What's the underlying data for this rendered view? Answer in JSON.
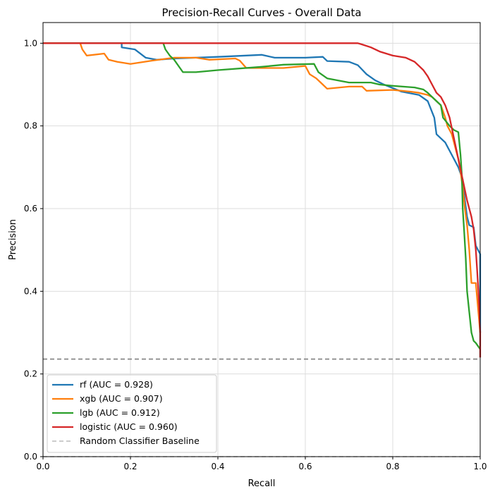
{
  "chart_data": {
    "type": "line",
    "title": "Precision-Recall Curves - Overall Data",
    "xlabel": "Recall",
    "ylabel": "Precision",
    "xlim": [
      0.0,
      1.0
    ],
    "ylim": [
      0.0,
      1.05
    ],
    "xticks": [
      0.0,
      0.2,
      0.4,
      0.6,
      0.8,
      1.0
    ],
    "yticks": [
      0.0,
      0.2,
      0.4,
      0.6,
      0.8,
      1.0
    ],
    "xtick_labels": [
      "0.0",
      "0.2",
      "0.4",
      "0.6",
      "0.8",
      "1.0"
    ],
    "ytick_labels": [
      "0.0",
      "0.2",
      "0.4",
      "0.6",
      "0.8",
      "1.0"
    ],
    "grid": true,
    "legend_position": "lower-left",
    "series": [
      {
        "name": "rf (AUC = 0.928)",
        "color": "#1f77b4",
        "points": [
          [
            0,
            1.0
          ],
          [
            0.18,
            1.0
          ],
          [
            0.18,
            0.99
          ],
          [
            0.21,
            0.985
          ],
          [
            0.235,
            0.965
          ],
          [
            0.26,
            0.96
          ],
          [
            0.3,
            0.963
          ],
          [
            0.4,
            0.967
          ],
          [
            0.5,
            0.972
          ],
          [
            0.53,
            0.965
          ],
          [
            0.6,
            0.965
          ],
          [
            0.64,
            0.967
          ],
          [
            0.65,
            0.957
          ],
          [
            0.7,
            0.955
          ],
          [
            0.72,
            0.947
          ],
          [
            0.74,
            0.925
          ],
          [
            0.76,
            0.91
          ],
          [
            0.78,
            0.9
          ],
          [
            0.82,
            0.883
          ],
          [
            0.86,
            0.875
          ],
          [
            0.88,
            0.86
          ],
          [
            0.895,
            0.82
          ],
          [
            0.9,
            0.78
          ],
          [
            0.91,
            0.77
          ],
          [
            0.92,
            0.76
          ],
          [
            0.93,
            0.74
          ],
          [
            0.94,
            0.72
          ],
          [
            0.95,
            0.7
          ],
          [
            0.96,
            0.67
          ],
          [
            0.965,
            0.62
          ],
          [
            0.97,
            0.58
          ],
          [
            0.975,
            0.56
          ],
          [
            0.985,
            0.555
          ],
          [
            0.99,
            0.51
          ],
          [
            0.995,
            0.5
          ],
          [
            1.0,
            0.49
          ],
          [
            1.0,
            0.3
          ]
        ]
      },
      {
        "name": "xgb (AUC = 0.907)",
        "color": "#ff7f0e",
        "points": [
          [
            0,
            1.0
          ],
          [
            0.085,
            1.0
          ],
          [
            0.09,
            0.985
          ],
          [
            0.1,
            0.97
          ],
          [
            0.14,
            0.975
          ],
          [
            0.15,
            0.96
          ],
          [
            0.17,
            0.955
          ],
          [
            0.2,
            0.95
          ],
          [
            0.25,
            0.958
          ],
          [
            0.3,
            0.965
          ],
          [
            0.35,
            0.965
          ],
          [
            0.38,
            0.96
          ],
          [
            0.42,
            0.962
          ],
          [
            0.44,
            0.963
          ],
          [
            0.45,
            0.958
          ],
          [
            0.465,
            0.94
          ],
          [
            0.5,
            0.94
          ],
          [
            0.55,
            0.94
          ],
          [
            0.6,
            0.945
          ],
          [
            0.61,
            0.925
          ],
          [
            0.625,
            0.915
          ],
          [
            0.64,
            0.9
          ],
          [
            0.65,
            0.89
          ],
          [
            0.7,
            0.895
          ],
          [
            0.73,
            0.895
          ],
          [
            0.74,
            0.885
          ],
          [
            0.8,
            0.887
          ],
          [
            0.84,
            0.883
          ],
          [
            0.86,
            0.88
          ],
          [
            0.88,
            0.875
          ],
          [
            0.89,
            0.87
          ],
          [
            0.9,
            0.86
          ],
          [
            0.91,
            0.85
          ],
          [
            0.92,
            0.82
          ],
          [
            0.925,
            0.8
          ],
          [
            0.93,
            0.79
          ],
          [
            0.935,
            0.78
          ],
          [
            0.94,
            0.76
          ],
          [
            0.945,
            0.74
          ],
          [
            0.95,
            0.72
          ],
          [
            0.955,
            0.69
          ],
          [
            0.96,
            0.65
          ],
          [
            0.965,
            0.6
          ],
          [
            0.97,
            0.56
          ],
          [
            0.975,
            0.5
          ],
          [
            0.978,
            0.45
          ],
          [
            0.98,
            0.42
          ],
          [
            0.99,
            0.42
          ],
          [
            1.0,
            0.3
          ]
        ]
      },
      {
        "name": "lgb (AUC = 0.912)",
        "color": "#2ca02c",
        "points": [
          [
            0,
            1.0
          ],
          [
            0.275,
            1.0
          ],
          [
            0.28,
            0.985
          ],
          [
            0.29,
            0.97
          ],
          [
            0.3,
            0.96
          ],
          [
            0.31,
            0.945
          ],
          [
            0.32,
            0.93
          ],
          [
            0.35,
            0.93
          ],
          [
            0.4,
            0.935
          ],
          [
            0.5,
            0.943
          ],
          [
            0.55,
            0.948
          ],
          [
            0.62,
            0.95
          ],
          [
            0.63,
            0.93
          ],
          [
            0.65,
            0.915
          ],
          [
            0.7,
            0.905
          ],
          [
            0.75,
            0.905
          ],
          [
            0.77,
            0.9
          ],
          [
            0.8,
            0.897
          ],
          [
            0.85,
            0.893
          ],
          [
            0.87,
            0.888
          ],
          [
            0.88,
            0.88
          ],
          [
            0.9,
            0.86
          ],
          [
            0.91,
            0.85
          ],
          [
            0.915,
            0.82
          ],
          [
            0.93,
            0.8
          ],
          [
            0.94,
            0.79
          ],
          [
            0.95,
            0.785
          ],
          [
            0.955,
            0.73
          ],
          [
            0.958,
            0.68
          ],
          [
            0.96,
            0.6
          ],
          [
            0.963,
            0.55
          ],
          [
            0.967,
            0.48
          ],
          [
            0.97,
            0.4
          ],
          [
            0.975,
            0.35
          ],
          [
            0.98,
            0.3
          ],
          [
            0.985,
            0.28
          ],
          [
            0.99,
            0.275
          ],
          [
            1.0,
            0.26
          ]
        ]
      },
      {
        "name": "logistic (AUC = 0.960)",
        "color": "#d62728",
        "points": [
          [
            0,
            1.0
          ],
          [
            0.72,
            1.0
          ],
          [
            0.73,
            0.997
          ],
          [
            0.75,
            0.99
          ],
          [
            0.77,
            0.98
          ],
          [
            0.8,
            0.97
          ],
          [
            0.83,
            0.965
          ],
          [
            0.85,
            0.955
          ],
          [
            0.86,
            0.945
          ],
          [
            0.87,
            0.935
          ],
          [
            0.88,
            0.92
          ],
          [
            0.89,
            0.9
          ],
          [
            0.9,
            0.88
          ],
          [
            0.91,
            0.87
          ],
          [
            0.92,
            0.85
          ],
          [
            0.93,
            0.82
          ],
          [
            0.94,
            0.77
          ],
          [
            0.95,
            0.72
          ],
          [
            0.96,
            0.67
          ],
          [
            0.97,
            0.62
          ],
          [
            0.98,
            0.58
          ],
          [
            0.985,
            0.55
          ],
          [
            0.99,
            0.5
          ],
          [
            0.993,
            0.45
          ],
          [
            0.996,
            0.4
          ],
          [
            0.998,
            0.35
          ],
          [
            1.0,
            0.3
          ],
          [
            1.0,
            0.24
          ]
        ]
      },
      {
        "name": "Random Classifier Baseline",
        "color": "#bbbbbb",
        "dashed": true,
        "points": [
          [
            0,
            0.0
          ],
          [
            1,
            0.0
          ]
        ]
      }
    ],
    "reference_lines": [
      {
        "orientation": "horizontal",
        "y": 0.236,
        "color": "#808080",
        "dashed": true
      }
    ]
  }
}
